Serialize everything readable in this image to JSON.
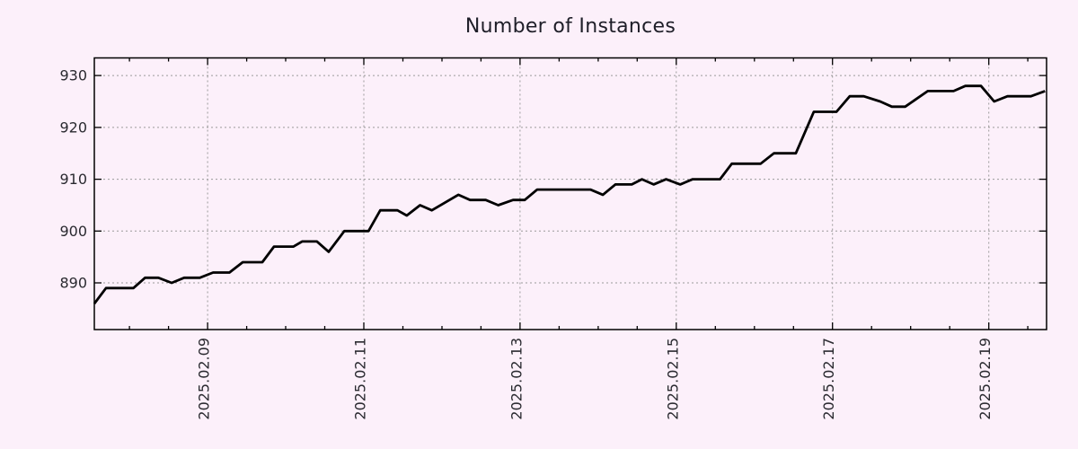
{
  "chart_data": {
    "type": "line",
    "title": "Number of Instances",
    "x_axis": {
      "tick_labels": [
        "2025.02.09",
        "2025.02.11",
        "2025.02.13",
        "2025.02.15",
        "2025.02.17",
        "2025.02.19"
      ],
      "tick_values": [
        9,
        11,
        13,
        15,
        17,
        19
      ],
      "minor_tick_step": 0.5,
      "unit": "day of February 2025 (decimal)",
      "lim": [
        7.55,
        19.74
      ]
    },
    "y_axis": {
      "tick_labels": [
        "890",
        "900",
        "910",
        "920",
        "930"
      ],
      "tick_values": [
        890,
        900,
        910,
        920,
        930
      ],
      "lim": [
        881.0,
        933.4
      ]
    },
    "grid": "dotted",
    "legend": "none",
    "colors": {
      "background": "#fcf0fa",
      "line": "#000000",
      "grid": "#9a9a9a",
      "axis": "#000000",
      "text": "#2a2a30"
    },
    "series": [
      {
        "name": "instances",
        "points": [
          [
            7.55,
            886
          ],
          [
            7.7,
            889
          ],
          [
            8.05,
            889
          ],
          [
            8.2,
            891
          ],
          [
            8.37,
            891
          ],
          [
            8.54,
            890
          ],
          [
            8.7,
            891
          ],
          [
            8.9,
            891
          ],
          [
            9.07,
            892
          ],
          [
            9.28,
            892
          ],
          [
            9.45,
            894
          ],
          [
            9.7,
            894
          ],
          [
            9.85,
            897
          ],
          [
            10.1,
            897
          ],
          [
            10.21,
            898
          ],
          [
            10.4,
            898
          ],
          [
            10.55,
            896
          ],
          [
            10.75,
            900
          ],
          [
            11.06,
            900
          ],
          [
            11.21,
            904
          ],
          [
            11.43,
            904
          ],
          [
            11.55,
            903
          ],
          [
            11.72,
            905
          ],
          [
            11.87,
            904
          ],
          [
            12.21,
            907
          ],
          [
            12.36,
            906
          ],
          [
            12.56,
            906
          ],
          [
            12.72,
            905
          ],
          [
            12.91,
            906
          ],
          [
            13.06,
            906
          ],
          [
            13.22,
            908
          ],
          [
            13.9,
            908
          ],
          [
            14.06,
            907
          ],
          [
            14.22,
            909
          ],
          [
            14.43,
            909
          ],
          [
            14.56,
            910
          ],
          [
            14.71,
            909
          ],
          [
            14.87,
            910
          ],
          [
            15.05,
            909
          ],
          [
            15.21,
            910
          ],
          [
            15.56,
            910
          ],
          [
            15.71,
            913
          ],
          [
            16.08,
            913
          ],
          [
            16.25,
            915
          ],
          [
            16.53,
            915
          ],
          [
            16.76,
            923
          ],
          [
            17.05,
            923
          ],
          [
            17.22,
            926
          ],
          [
            17.4,
            926
          ],
          [
            17.61,
            925
          ],
          [
            17.76,
            924
          ],
          [
            17.93,
            924
          ],
          [
            18.22,
            927
          ],
          [
            18.55,
            927
          ],
          [
            18.7,
            928
          ],
          [
            18.9,
            928
          ],
          [
            19.07,
            925
          ],
          [
            19.24,
            926
          ],
          [
            19.54,
            926
          ],
          [
            19.72,
            927
          ]
        ]
      }
    ]
  }
}
